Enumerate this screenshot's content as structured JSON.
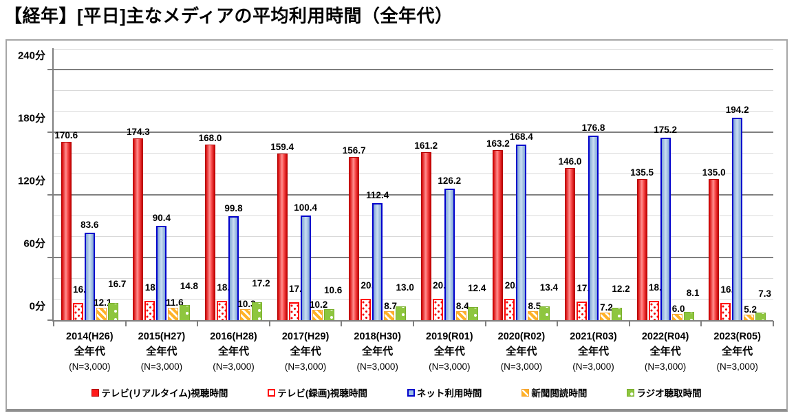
{
  "title": "【経年】[平日]主なメディアの平均利用時間（全年代）",
  "colors": {
    "tv_realtime": "#ff1a1a",
    "tv_recorded_border": "#ff0000",
    "net_fill": "#9dc0e8",
    "net_border": "#0000cc",
    "newspaper": "#ffb228",
    "radio": "#8ec63f",
    "grid_major": "#7f7f7f",
    "grid_minor": "#d9d9d9",
    "frame_border": "#a6a6a6"
  },
  "chart_data": {
    "type": "bar",
    "title": "【経年】[平日]主なメディアの平均利用時間（全年代）",
    "xlabel": "",
    "ylabel": "分",
    "ylim": [
      0,
      260
    ],
    "y_major_step": 60,
    "y_minor_step": 20,
    "grid": "on",
    "legend_position": "bottom",
    "y_tick_labels": [
      "0分",
      "60分",
      "120分",
      "180分",
      "240分"
    ],
    "categories": [
      {
        "year": "2014(H26)",
        "group": "全年代",
        "n": "(N=3,000)"
      },
      {
        "year": "2015(H27)",
        "group": "全年代",
        "n": "(N=3,000)"
      },
      {
        "year": "2016(H28)",
        "group": "全年代",
        "n": "(N=3,000)"
      },
      {
        "year": "2017(H29)",
        "group": "全年代",
        "n": "(N=3,000)"
      },
      {
        "year": "2018(H30)",
        "group": "全年代",
        "n": "(N=3,000)"
      },
      {
        "year": "2019(R01)",
        "group": "全年代",
        "n": "(N=3,000)"
      },
      {
        "year": "2020(R02)",
        "group": "全年代",
        "n": "(N=3,000)"
      },
      {
        "year": "2021(R03)",
        "group": "全年代",
        "n": "(N=3,000)"
      },
      {
        "year": "2022(R04)",
        "group": "全年代",
        "n": "(N=3,000)"
      },
      {
        "year": "2023(R05)",
        "group": "全年代",
        "n": "(N=3,000)"
      }
    ],
    "series": [
      {
        "key": "tv_realtime",
        "name": "テレビ(リアルタイム)視聴時間",
        "values": [
          "170.6",
          "174.3",
          "168.0",
          "159.4",
          "156.7",
          "161.2",
          "163.2",
          "146.0",
          "135.5",
          "135.0"
        ]
      },
      {
        "key": "tv_recorded",
        "name": "テレビ(録画)視聴時間",
        "values": [
          "16.2",
          "18.6",
          "18.7",
          "17.2",
          "20.3",
          "20.3",
          "20.2",
          "17.8",
          "18.2",
          "16.4"
        ]
      },
      {
        "key": "net",
        "name": "ネット利用時間",
        "values": [
          "83.6",
          "90.4",
          "99.8",
          "100.4",
          "112.4",
          "126.2",
          "168.4",
          "176.8",
          "175.2",
          "194.2"
        ]
      },
      {
        "key": "newspaper",
        "name": "新聞閲読時間",
        "values": [
          "12.1",
          "11.6",
          "10.3",
          "10.2",
          "8.7",
          "8.4",
          "8.5",
          "7.2",
          "6.0",
          "5.2"
        ]
      },
      {
        "key": "radio",
        "name": "ラジオ聴取時間",
        "values": [
          "16.7",
          "14.8",
          "17.2",
          "10.6",
          "13.0",
          "12.4",
          "13.4",
          "12.2",
          "8.1",
          "7.3"
        ]
      }
    ]
  }
}
